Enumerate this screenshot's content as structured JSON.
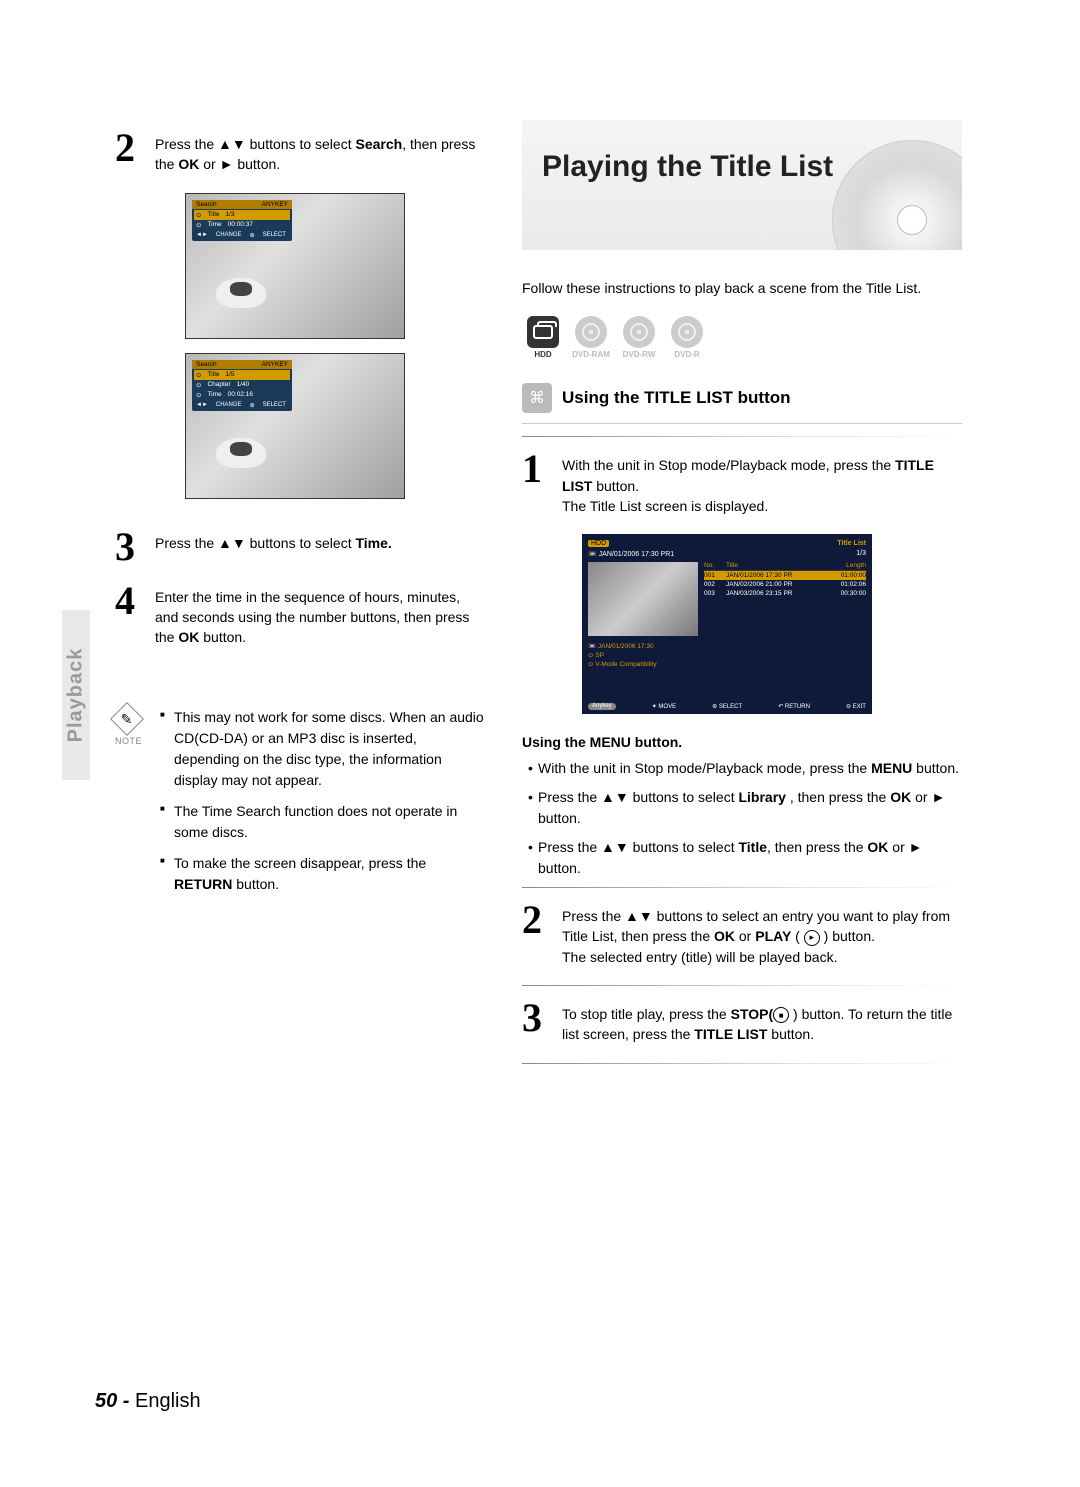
{
  "sideTab": "Playback",
  "left": {
    "step2": {
      "num": "2",
      "pre": "Press the ",
      "mid1": " buttons to select ",
      "bold1": "Search",
      "mid2": ", then press the ",
      "bold2": "OK",
      "mid3": " or ",
      "end": " button."
    },
    "osd1": {
      "title": "Search",
      "titleR": "ANYKEY",
      "r1a": "Title",
      "r1b": "1/3",
      "r2a": "Time",
      "r2b": "00:00:37",
      "fa": "CHANGE",
      "fb": "SELECT"
    },
    "osd2": {
      "title": "Search",
      "titleR": "ANYKEY",
      "r1a": "Title",
      "r1b": "1/5",
      "r2a": "Chapter",
      "r2b": "1/40",
      "r3a": "Time",
      "r3b": "00:02:16",
      "fa": "CHANGE",
      "fb": "SELECT"
    },
    "step3": {
      "num": "3",
      "pre": "Press the ",
      "mid": " buttons to select ",
      "bold": "Time."
    },
    "step4": {
      "num": "4",
      "t1": "Enter the time in the sequence of hours, minutes, and seconds using the number buttons, then press the ",
      "bold": "OK",
      "t2": " button."
    },
    "noteLabel": "NOTE",
    "notes": {
      "n1": "This may not work for some discs. When an audio CD(CD-DA) or an MP3 disc is inserted, depending on the disc type, the information display may not appear.",
      "n2": "The Time Search function does not operate in some discs.",
      "n3a": "To make the screen disappear, press the ",
      "n3b": "RETURN",
      "n3c": " button."
    }
  },
  "right": {
    "title": "Playing the Title List",
    "intro": "Follow these instructions to play back a scene from the Title List.",
    "discs": [
      {
        "label": "HDD",
        "active": true,
        "shape": "sq"
      },
      {
        "label": "DVD-RAM",
        "active": false,
        "shape": "round"
      },
      {
        "label": "DVD-RW",
        "active": false,
        "shape": "round"
      },
      {
        "label": "DVD-R",
        "active": false,
        "shape": "round"
      }
    ],
    "sectionTitle": "Using the TITLE LIST button",
    "step1": {
      "num": "1",
      "t1": "With the unit in Stop mode/Playback mode, press the ",
      "b1": "TITLE LIST",
      "t2": " button.",
      "t3": "The Title List screen is displayed."
    },
    "tls": {
      "hdd": "HDD",
      "titleList": "Title List",
      "date": "JAN/01/2006 17:30 PR1",
      "frac": "1/3",
      "thead": {
        "no": "No.",
        "title": "Title",
        "length": "Length"
      },
      "rows": [
        {
          "no": "001",
          "title": "JAN/01/2006 17:30 PR",
          "len": "01:00:00"
        },
        {
          "no": "002",
          "title": "JAN/02/2006 21:00 PR",
          "len": "01:02:06"
        },
        {
          "no": "003",
          "title": "JAN/03/2006 23:15 PR",
          "len": "00:30:00"
        }
      ],
      "info1": "JAN/01/2006 17:30",
      "info2": "SP",
      "info3": "V-Mode Compatibility",
      "anykey": "Anykey",
      "f1": "MOVE",
      "f2": "SELECT",
      "f3": "RETURN",
      "f4": "EXIT"
    },
    "menuTitle": "Using the MENU button.",
    "menu": {
      "m1a": "With the unit in Stop mode/Playback mode, press the ",
      "m1b": "MENU",
      "m1c": " button.",
      "m2a": "Press the ",
      "m2b": " buttons to select ",
      "m2c": "Library",
      "m2d": " , then press the ",
      "m2e": "OK",
      "m2f": " or ",
      "m2g": " button.",
      "m3a": "Press the ",
      "m3b": " buttons to select ",
      "m3c": "Title",
      "m3d": ", then press the ",
      "m3e": "OK",
      "m3f": " or ",
      "m3g": " button."
    },
    "step2": {
      "num": "2",
      "t1": "Press the ",
      "t2": " buttons to select an entry you want to play from Title List, then press the ",
      "b1": "OK",
      "t3": " or ",
      "b2": "PLAY",
      "t4": " ( ",
      "t5": " ) button.",
      "t6": "The selected entry (title) will be played back."
    },
    "step3": {
      "num": "3",
      "t1": "To stop title play, press the ",
      "b1": "STOP(",
      "t2": " ) button. To return the title list screen, press the ",
      "b2": "TITLE LIST",
      "t3": " button."
    }
  },
  "footer": {
    "page": "50 -",
    "lang": "English"
  }
}
